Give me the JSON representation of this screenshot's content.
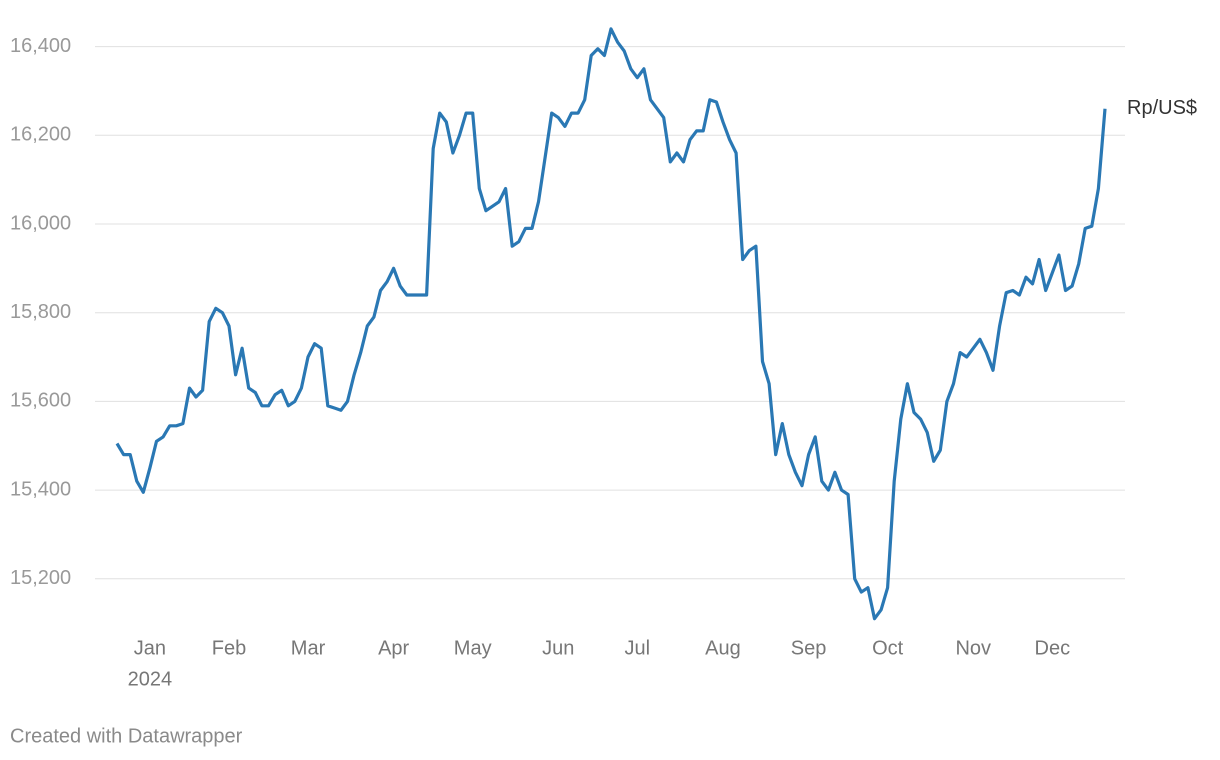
{
  "chart_data": {
    "type": "line",
    "categories": [
      null,
      null,
      null,
      null,
      null,
      "Jan",
      null,
      null,
      null,
      null,
      null,
      null,
      null,
      null,
      null,
      null,
      null,
      "Feb",
      null,
      null,
      null,
      null,
      null,
      null,
      null,
      null,
      null,
      null,
      null,
      "Mar",
      null,
      null,
      null,
      null,
      null,
      null,
      null,
      null,
      null,
      null,
      null,
      null,
      "Apr",
      null,
      null,
      null,
      null,
      null,
      null,
      null,
      null,
      null,
      null,
      null,
      "May",
      null,
      null,
      null,
      null,
      null,
      null,
      null,
      null,
      null,
      null,
      null,
      null,
      "Jun",
      null,
      null,
      null,
      null,
      null,
      null,
      null,
      null,
      null,
      null,
      null,
      "Jul",
      null,
      null,
      null,
      null,
      null,
      null,
      null,
      null,
      null,
      null,
      null,
      null,
      "Aug",
      null,
      null,
      null,
      null,
      null,
      null,
      null,
      null,
      null,
      null,
      null,
      null,
      "Sep",
      null,
      null,
      null,
      null,
      null,
      null,
      null,
      null,
      null,
      null,
      null,
      "Oct",
      null,
      null,
      null,
      null,
      null,
      null,
      null,
      null,
      null,
      null,
      null,
      null,
      "Nov",
      null,
      null,
      null,
      null,
      null,
      null,
      null,
      null,
      null,
      null,
      null,
      "Dec",
      null,
      null,
      null,
      null,
      null,
      null,
      null,
      null
    ],
    "year": "2024",
    "series": [
      {
        "name": "Rp/US$",
        "color": "#2a78b4",
        "values": [
          15505,
          15480,
          15480,
          15420,
          15395,
          15450,
          15510,
          15520,
          15545,
          15545,
          15550,
          15630,
          15610,
          15625,
          15780,
          15810,
          15800,
          15770,
          15660,
          15720,
          15630,
          15620,
          15590,
          15590,
          15615,
          15625,
          15590,
          15600,
          15630,
          15700,
          15730,
          15720,
          15590,
          15585,
          15580,
          15600,
          15660,
          15710,
          15770,
          15790,
          15850,
          15870,
          15900,
          15860,
          15840,
          15840,
          15840,
          15840,
          16170,
          16250,
          16230,
          16160,
          16200,
          16250,
          16250,
          16080,
          16030,
          16040,
          16050,
          16080,
          15950,
          15960,
          15990,
          15990,
          16050,
          16150,
          16250,
          16240,
          16220,
          16250,
          16250,
          16280,
          16380,
          16395,
          16380,
          16440,
          16410,
          16390,
          16350,
          16330,
          16350,
          16280,
          16260,
          16240,
          16140,
          16160,
          16140,
          16190,
          16210,
          16210,
          16280,
          16275,
          16230,
          16190,
          16160,
          15920,
          15940,
          15950,
          15690,
          15640,
          15480,
          15550,
          15480,
          15440,
          15410,
          15480,
          15520,
          15420,
          15400,
          15440,
          15400,
          15390,
          15200,
          15170,
          15180,
          15110,
          15130,
          15180,
          15420,
          15560,
          15640,
          15575,
          15560,
          15530,
          15465,
          15490,
          15600,
          15640,
          15710,
          15700,
          15720,
          15740,
          15710,
          15670,
          15770,
          15845,
          15850,
          15840,
          15880,
          15865,
          15920,
          15850,
          15890,
          15930,
          15850,
          15860,
          15910,
          15990,
          15995,
          16080,
          16260
        ]
      }
    ],
    "ylim": [
      15080,
      16460
    ],
    "yticks": [
      {
        "value": 15200,
        "label": "15,200"
      },
      {
        "value": 15400,
        "label": "15,400"
      },
      {
        "value": 15600,
        "label": "15,600"
      },
      {
        "value": 15800,
        "label": "15,800"
      },
      {
        "value": 16000,
        "label": "16,000"
      },
      {
        "value": 16200,
        "label": "16,200"
      },
      {
        "value": 16400,
        "label": "16,400"
      }
    ],
    "grid": true,
    "footer": "Created with Datawrapper"
  }
}
